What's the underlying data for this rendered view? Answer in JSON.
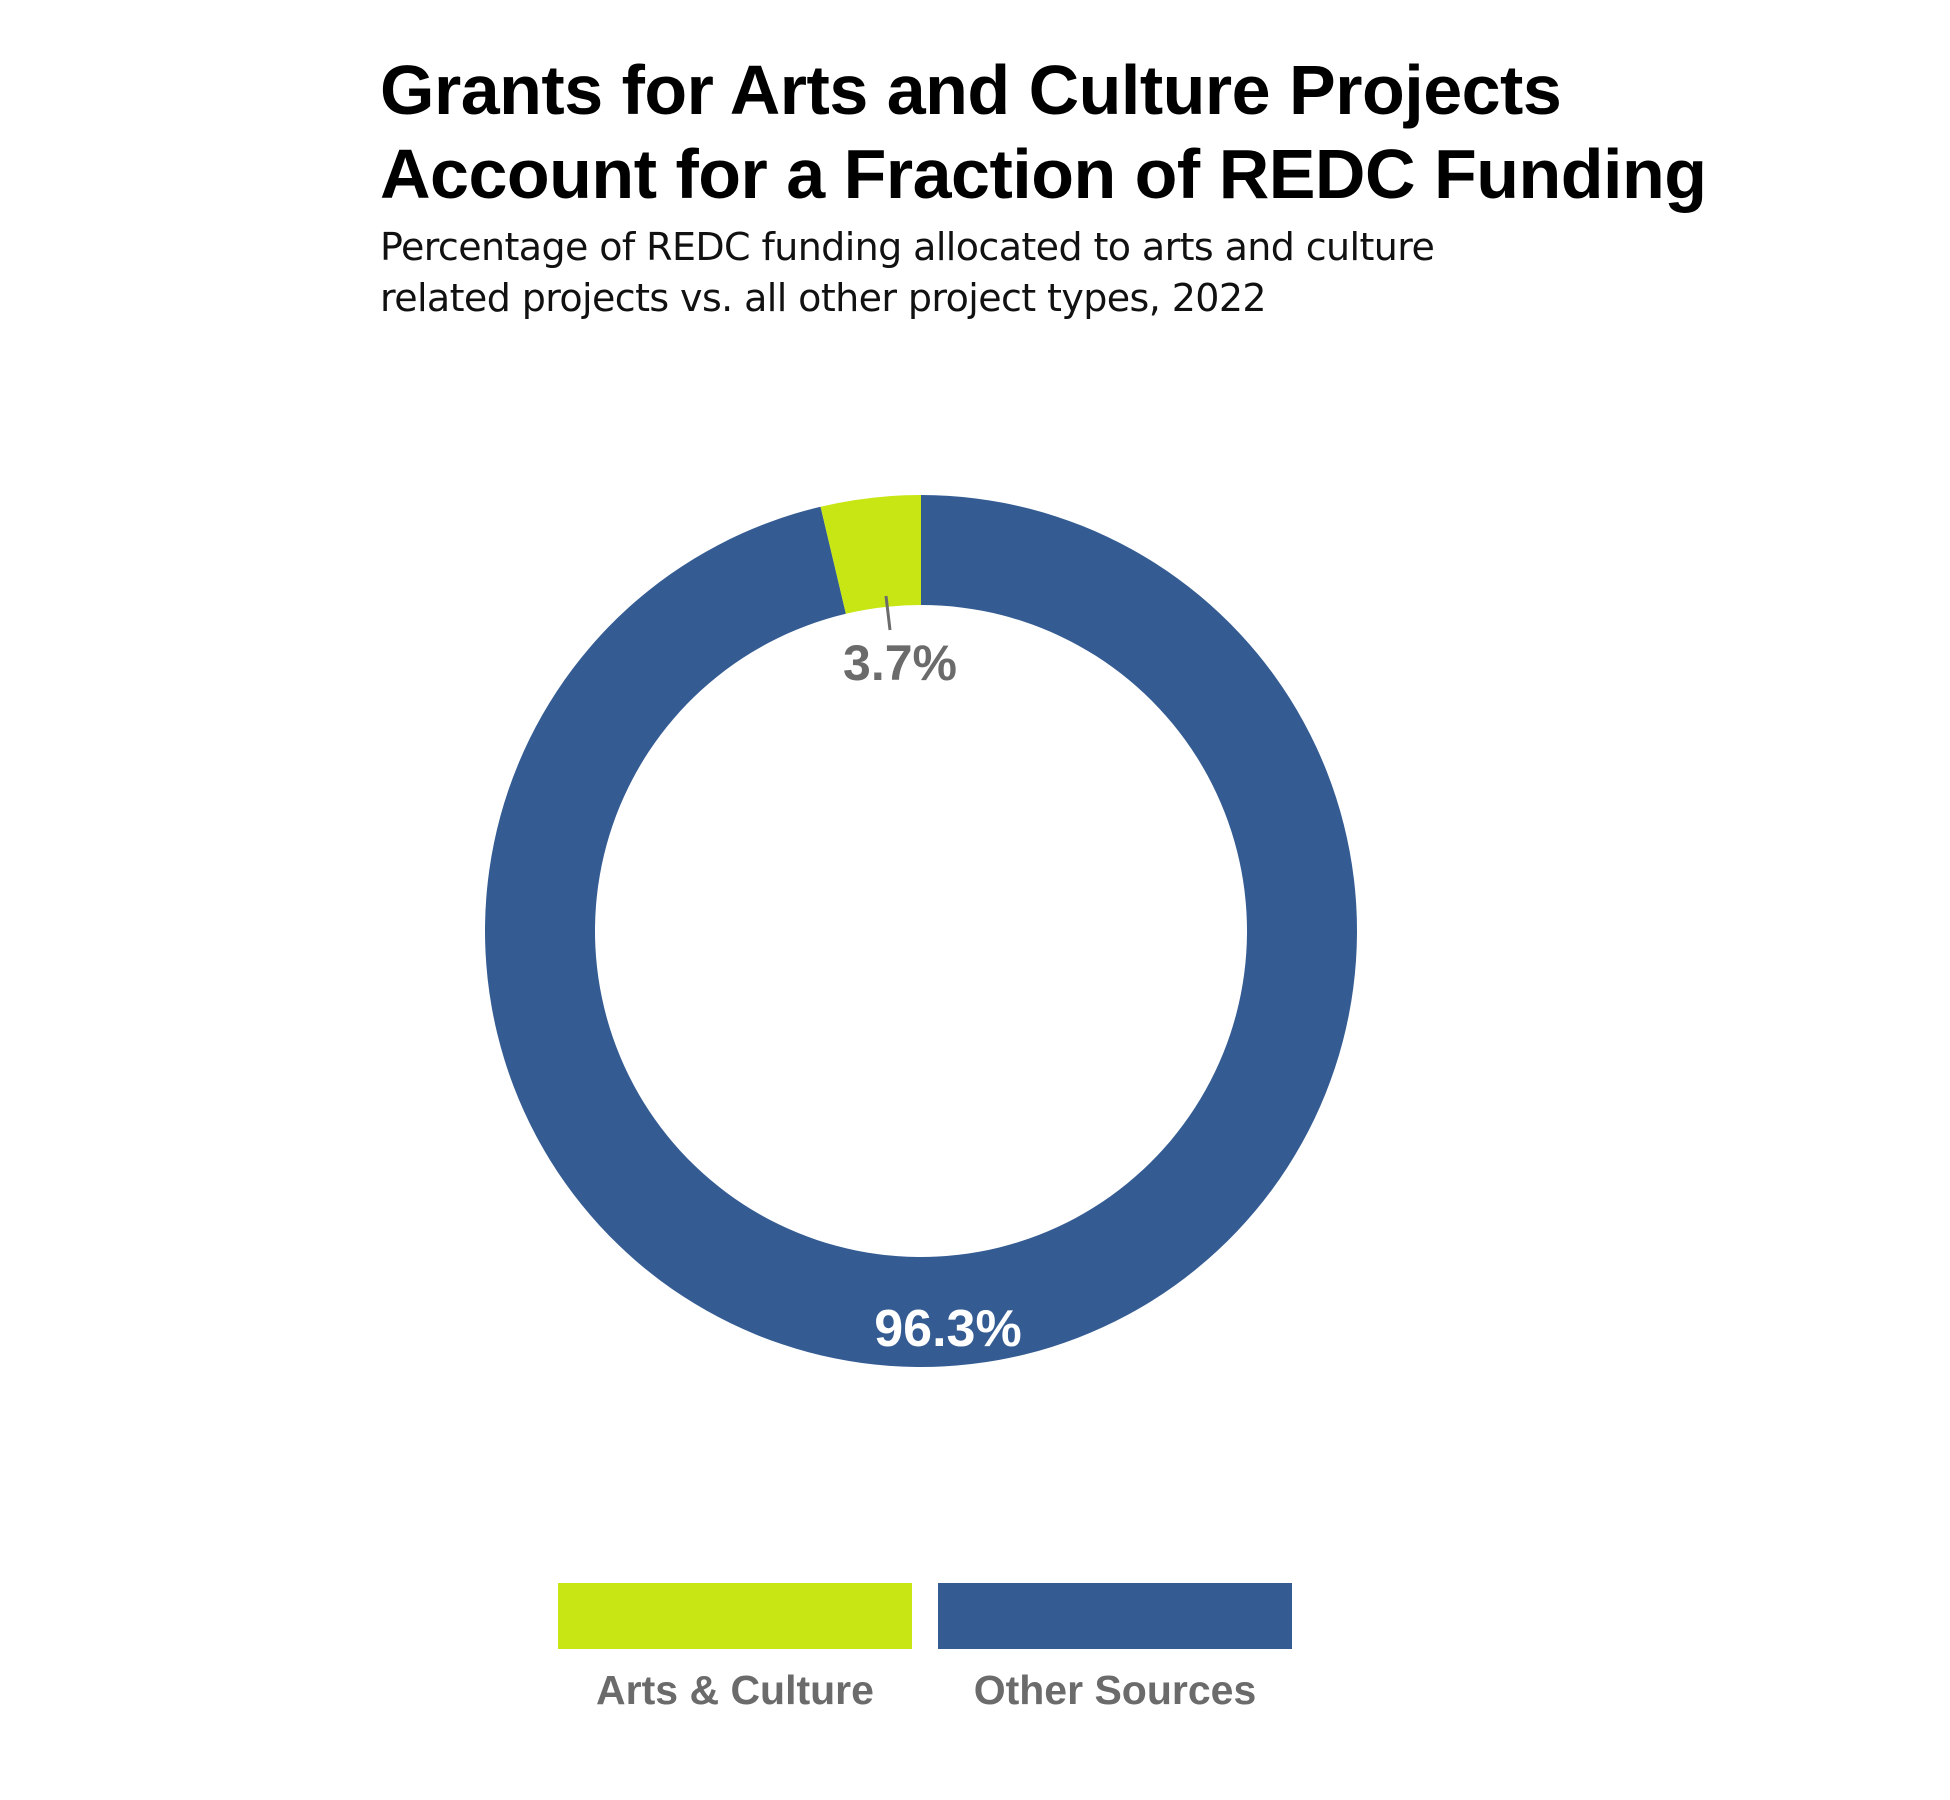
{
  "header": {
    "title_lines": [
      "Grants for Arts and Culture Projects",
      "Account for a Fraction of REDC Funding"
    ],
    "subtitle_lines": [
      "Percentage of REDC funding allocated to arts and culture",
      "related projects vs. all other project types, 2022"
    ]
  },
  "colors": {
    "arts_culture": "#c8e614",
    "other_sources": "#345c93",
    "label_gray": "#6b6b6b",
    "label_white": "#ffffff"
  },
  "labels": {
    "arts_culture_pct": "3.7%",
    "other_sources_pct": "96.3%"
  },
  "legend": [
    {
      "label": "Arts & Culture",
      "color": "#c8e614"
    },
    {
      "label": "Other Sources",
      "color": "#345c93"
    }
  ],
  "chart_data": {
    "type": "pie",
    "variant": "donut",
    "title": "Grants for Arts and Culture Projects Account for a Fraction of REDC Funding",
    "subtitle": "Percentage of REDC funding allocated to arts and culture related projects vs. all other project types, 2022",
    "categories": [
      "Arts & Culture",
      "Other Sources"
    ],
    "values": [
      3.7,
      96.3
    ],
    "unit": "%",
    "data_labels": [
      "3.7%",
      "96.3%"
    ],
    "colors": [
      "#c8e614",
      "#345c93"
    ],
    "start_angle": "12 o'clock, counter-clockwise for Arts & Culture",
    "legend_position": "bottom"
  }
}
